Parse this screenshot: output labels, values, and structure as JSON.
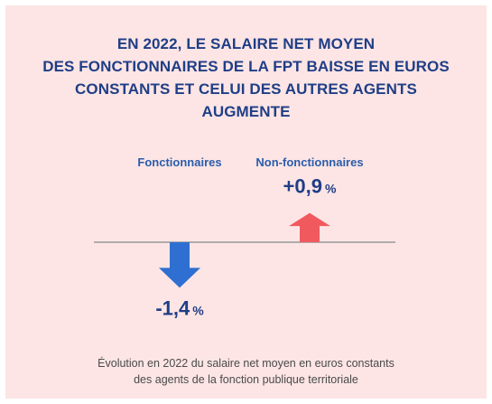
{
  "title_lines": [
    "EN 2022, LE SALAIRE NET MOYEN",
    "DES FONCTIONNAIRES DE LA FPT BAISSE EN EUROS",
    "CONSTANTS ET CELUI DES AUTRES AGENTS",
    "AUGMENTE"
  ],
  "caption_lines": [
    "Évolution en 2022 du salaire net moyen en euros constants",
    "des agents de la fonction publique territoriale"
  ],
  "colors": {
    "background": "#fde5e5",
    "title": "#1f3e86",
    "category_label": "#2a5dab",
    "negative": "#2e6fd1",
    "positive": "#f05a5f",
    "baseline": "#9a9a9a"
  },
  "chart_data": {
    "type": "bar",
    "categories": [
      "Fonctionnaires",
      "Non-fonctionnaires"
    ],
    "values": [
      -1.4,
      0.9
    ],
    "data_labels": [
      {
        "number": "-1,4",
        "unit": "%"
      },
      {
        "number": "+0,9",
        "unit": "%"
      }
    ],
    "unit": "%",
    "grid": false,
    "legend": false
  }
}
